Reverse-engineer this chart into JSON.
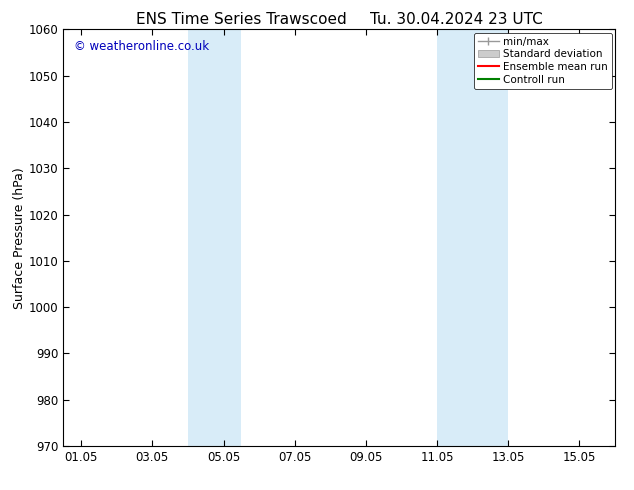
{
  "title_left": "ENS Time Series Trawscoed",
  "title_right": "Tu. 30.04.2024 23 UTC",
  "ylabel": "Surface Pressure (hPa)",
  "ylim": [
    970,
    1060
  ],
  "yticks": [
    970,
    980,
    990,
    1000,
    1010,
    1020,
    1030,
    1040,
    1050,
    1060
  ],
  "xtick_labels": [
    "01.05",
    "03.05",
    "05.05",
    "07.05",
    "09.05",
    "11.05",
    "13.05",
    "15.05"
  ],
  "xtick_positions": [
    1,
    3,
    5,
    7,
    9,
    11,
    13,
    15
  ],
  "xlim": [
    0.5,
    16
  ],
  "shade_bands": [
    {
      "x_start": 4.0,
      "x_end": 5.5
    },
    {
      "x_start": 11.0,
      "x_end": 13.0
    }
  ],
  "shade_color": "#d8ecf8",
  "copyright_text": "© weatheronline.co.uk",
  "copyright_color": "#0000bb",
  "legend_items": [
    {
      "label": "min/max",
      "color": "#aaaaaa",
      "type": "minmax"
    },
    {
      "label": "Standard deviation",
      "color": "#cccccc",
      "type": "fill"
    },
    {
      "label": "Ensemble mean run",
      "color": "#ff0000",
      "type": "line"
    },
    {
      "label": "Controll run",
      "color": "#008000",
      "type": "line"
    }
  ],
  "background_color": "#ffffff",
  "title_fontsize": 11,
  "tick_fontsize": 8.5,
  "ylabel_fontsize": 9
}
